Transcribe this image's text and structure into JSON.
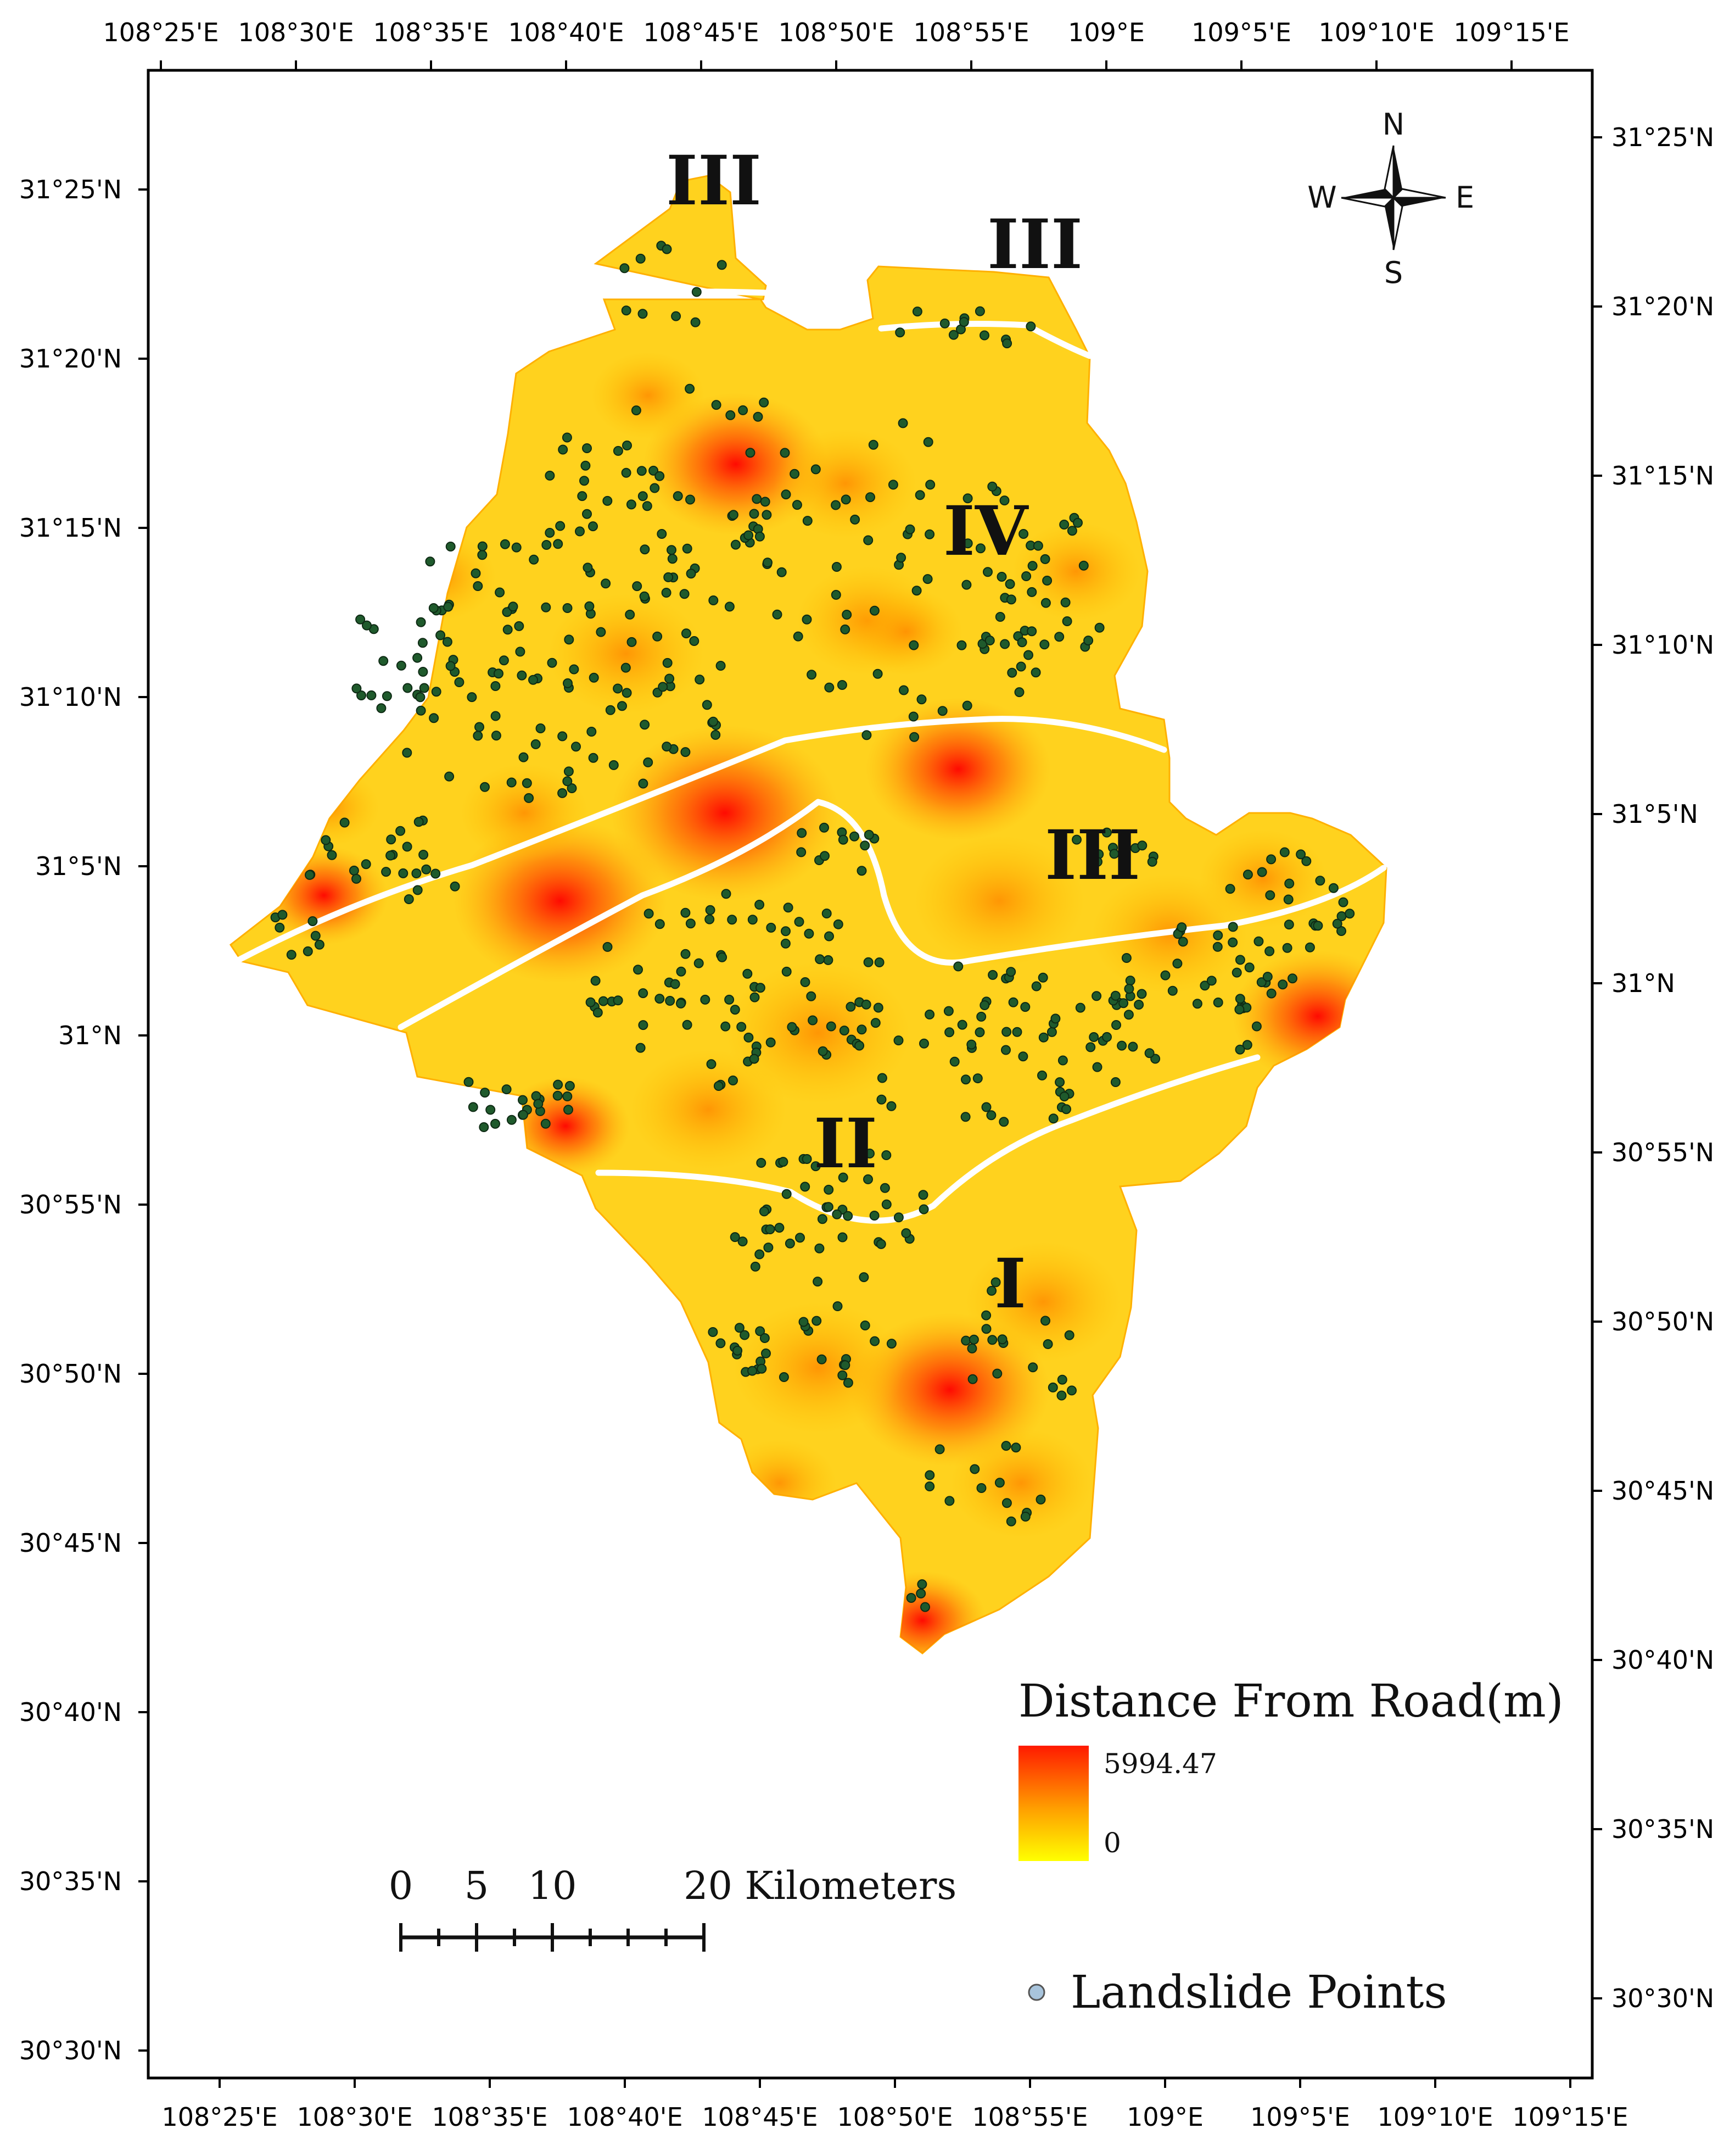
{
  "map": {
    "top_axis_labels": [
      "108°25'E",
      "108°30'E",
      "108°35'E",
      "108°40'E",
      "108°45'E",
      "108°50'E",
      "108°55'E",
      "109°E",
      "109°5'E",
      "109°10'E",
      "109°15'E"
    ],
    "bottom_axis_labels": [
      "108°25'E",
      "108°30'E",
      "108°35'E",
      "108°40'E",
      "108°45'E",
      "108°50'E",
      "108°55'E",
      "109°E",
      "109°5'E",
      "109°10'E",
      "109°15'E"
    ],
    "left_axis_labels": [
      "31°25'N",
      "31°20'N",
      "31°15'N",
      "31°10'N",
      "31°5'N",
      "31°N",
      "30°55'N",
      "30°50'N",
      "30°45'N",
      "30°40'N",
      "30°35'N",
      "30°30'N"
    ],
    "right_axis_labels": [
      "31°25'N",
      "31°20'N",
      "31°15'N",
      "31°10'N",
      "31°5'N",
      "31°N",
      "30°55'N",
      "30°50'N",
      "30°45'N",
      "30°40'N",
      "30°35'N",
      "30°30'N"
    ],
    "zones": [
      {
        "id": "zone-iii-north",
        "label": "III"
      },
      {
        "id": "zone-iii-northeast",
        "label": "III"
      },
      {
        "id": "zone-iv",
        "label": "IV"
      },
      {
        "id": "zone-iii-central",
        "label": "III"
      },
      {
        "id": "zone-ii",
        "label": "II"
      },
      {
        "id": "zone-i",
        "label": "I"
      }
    ],
    "raster_colors": {
      "low": "#ffff00",
      "mid": "#ffa500",
      "high": "#ff0000"
    },
    "point_color": "#1f5a2c"
  },
  "compass": {
    "north": "N",
    "south": "S",
    "east": "E",
    "west": "W"
  },
  "legend": {
    "title": "Distance From Road(m)",
    "max_label": "5994.47",
    "min_label": "0",
    "points_label": "Landslide Points"
  },
  "scale_bar": {
    "labels": [
      "0",
      "5",
      "10",
      "20 Kilometers"
    ]
  }
}
